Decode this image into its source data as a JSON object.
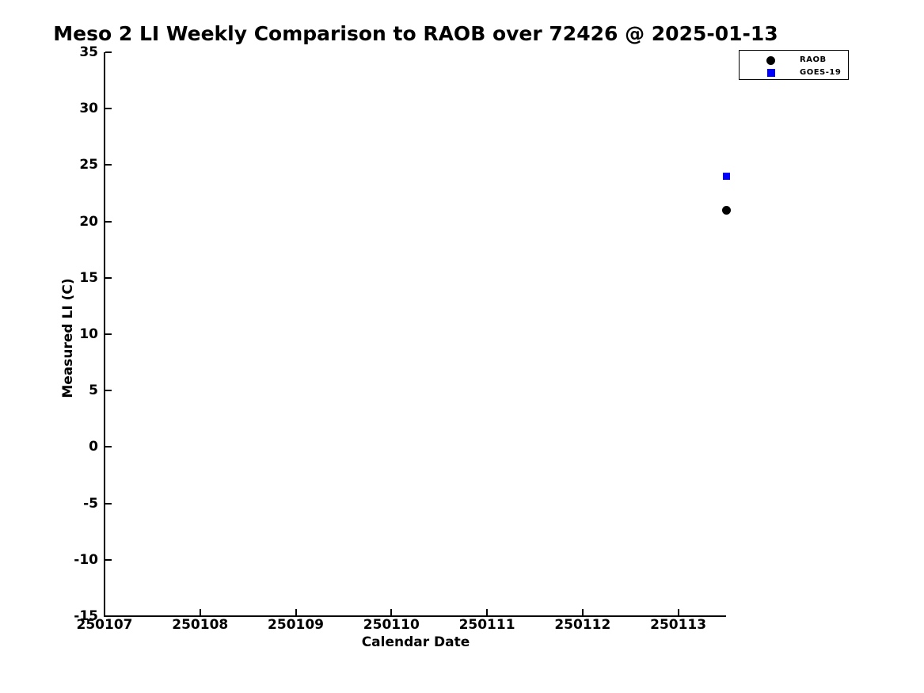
{
  "chart_data": {
    "type": "scatter",
    "title": "Meso 2 LI Weekly Comparison to RAOB over 72426 @ 2025-01-13",
    "xlabel": "Calendar Date",
    "ylabel": "Measured LI (C)",
    "xlim": [
      250107,
      250113.5
    ],
    "ylim": [
      -15,
      35
    ],
    "x_ticks": [
      250107,
      250108,
      250109,
      250110,
      250111,
      250112,
      250113
    ],
    "y_ticks": [
      35,
      30,
      25,
      20,
      15,
      10,
      5,
      0,
      -5,
      -10,
      -15
    ],
    "grid": false,
    "legend": {
      "position": "top-right",
      "entries": [
        "RAOB",
        "GOES-19"
      ]
    },
    "series": [
      {
        "name": "RAOB",
        "marker": "circle",
        "color": "#000000",
        "x": [
          250113.5
        ],
        "y": [
          21
        ]
      },
      {
        "name": "GOES-19",
        "marker": "square",
        "color": "#0000ff",
        "x": [
          250113.5
        ],
        "y": [
          24
        ]
      }
    ],
    "colors": {
      "background": "#ffffff",
      "axis": "#000000",
      "text": "#000000",
      "raob": "#000000",
      "goes19": "#0000ff"
    }
  }
}
